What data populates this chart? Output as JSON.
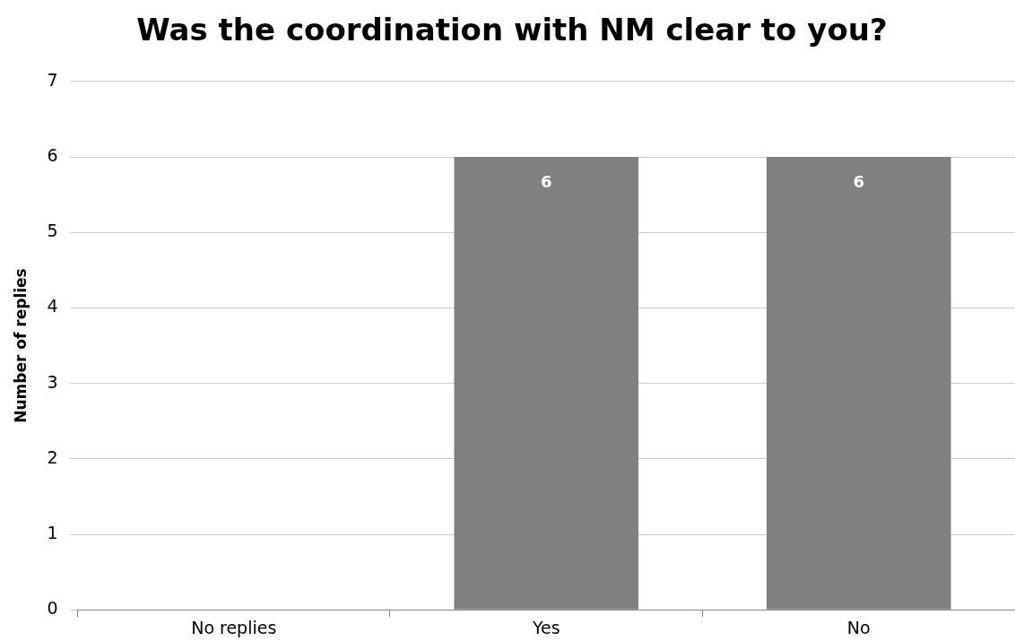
{
  "chart_data": {
    "type": "bar",
    "title": "Was the coordination with NM clear to you?",
    "ylabel": "Number of replies",
    "categories": [
      "No replies",
      "Yes",
      "No"
    ],
    "values": [
      0,
      6,
      6
    ],
    "value_labels": [
      null,
      "6",
      "6"
    ],
    "color": "#808080",
    "ylim": [
      0,
      7
    ],
    "yticks": [
      0,
      1,
      2,
      3,
      4,
      5,
      6,
      7
    ],
    "grid": "y",
    "legend": false
  }
}
